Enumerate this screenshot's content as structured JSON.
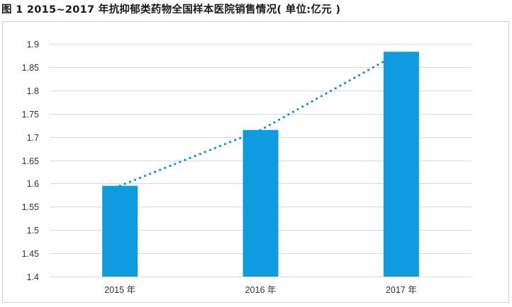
{
  "figure": {
    "title": "图 1   2015~2017 年抗抑郁类药物全国样本医院销售情况( 单位:亿元 )"
  },
  "chart_data": {
    "type": "bar",
    "title": "",
    "xlabel": "",
    "ylabel": "",
    "categories": [
      "2015 年",
      "2016 年",
      "2017 年"
    ],
    "values": [
      1.595,
      1.715,
      1.883
    ],
    "ylim": [
      1.4,
      1.9
    ],
    "yticks": [
      "1.4",
      "1.45",
      "1.5",
      "1.55",
      "1.6",
      "1.65",
      "1.7",
      "1.75",
      "1.8",
      "1.85",
      "1.9"
    ],
    "grid": true,
    "trendline": {
      "style": "dotted",
      "color": "#1a8fd6"
    },
    "bar_color": "#0f9be0",
    "grid_color": "#d9d9d9"
  }
}
